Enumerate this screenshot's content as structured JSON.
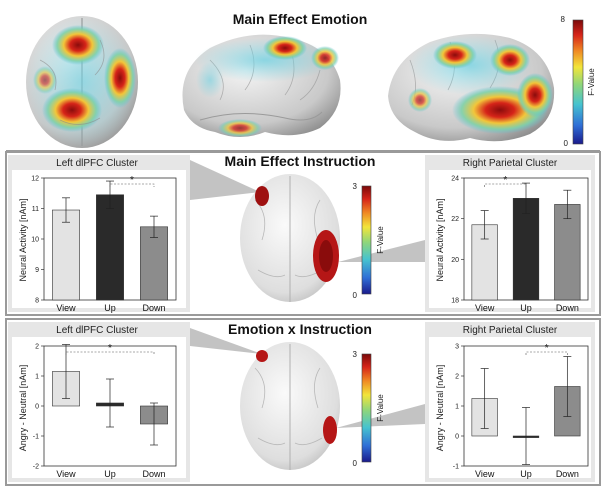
{
  "figure": {
    "section_titles": [
      "Main Effect Emotion",
      "Main Effect Instruction",
      "Emotion x Instruction"
    ],
    "colors": {
      "view": "#e3e3e3",
      "up": "#2a2a2a",
      "down": "#8c8c8c",
      "colormap": [
        "#1a1a8c",
        "#2f6fd6",
        "#46c3cf",
        "#8fd67a",
        "#f2e53a",
        "#f08a24",
        "#d62419",
        "#7a0a0a"
      ]
    }
  },
  "colorbars": [
    {
      "label": "F-Value",
      "max": "8",
      "min": "0"
    },
    {
      "label": "F-Value",
      "max": "3",
      "min": "0"
    },
    {
      "label": "F-Value",
      "max": "3",
      "min": "0"
    }
  ],
  "chart_data": [
    {
      "type": "bar",
      "title": "Left dlPFC Cluster",
      "ylabel": "Neural Activity [nAm]",
      "categories": [
        "View",
        "Up",
        "Down"
      ],
      "values": [
        10.95,
        11.45,
        10.4
      ],
      "errors": [
        0.4,
        0.45,
        0.35
      ],
      "ylim": [
        8,
        12
      ],
      "yticks": [
        "8",
        "9",
        "10",
        "11",
        "12"
      ],
      "significance": [
        {
          "between": [
            "Up",
            "Down"
          ],
          "label": "*"
        }
      ]
    },
    {
      "type": "bar",
      "title": "Right Parietal Cluster",
      "ylabel": "Neural Activity [nAm]",
      "categories": [
        "View",
        "Up",
        "Down"
      ],
      "values": [
        21.7,
        23.0,
        22.7
      ],
      "errors": [
        0.7,
        0.75,
        0.7
      ],
      "ylim": [
        18,
        24
      ],
      "yticks": [
        "18",
        "20",
        "22",
        "24"
      ],
      "significance": [
        {
          "between": [
            "View",
            "Up"
          ],
          "label": "*"
        }
      ]
    },
    {
      "type": "bar",
      "title": "Left dlPFC Cluster",
      "ylabel": "Angry - Neutral [nAm]",
      "categories": [
        "View",
        "Up",
        "Down"
      ],
      "values": [
        1.15,
        0.1,
        -0.6
      ],
      "errors": [
        0.9,
        0.8,
        0.7
      ],
      "ylim": [
        -2,
        2
      ],
      "yticks": [
        "-2",
        "-1",
        "0",
        "1",
        "2"
      ],
      "significance": [
        {
          "between": [
            "View",
            "Down"
          ],
          "label": "*"
        }
      ]
    },
    {
      "type": "bar",
      "title": "Right Parietal Cluster",
      "ylabel": "Angry - Neutral [nAm]",
      "categories": [
        "View",
        "Up",
        "Down"
      ],
      "values": [
        1.25,
        0.0,
        1.65
      ],
      "errors": [
        1.0,
        0.95,
        1.0
      ],
      "ylim": [
        -1,
        3
      ],
      "yticks": [
        "-1",
        "0",
        "1",
        "2",
        "3"
      ],
      "significance": [
        {
          "between": [
            "Up",
            "Down"
          ],
          "label": "*"
        }
      ]
    }
  ]
}
